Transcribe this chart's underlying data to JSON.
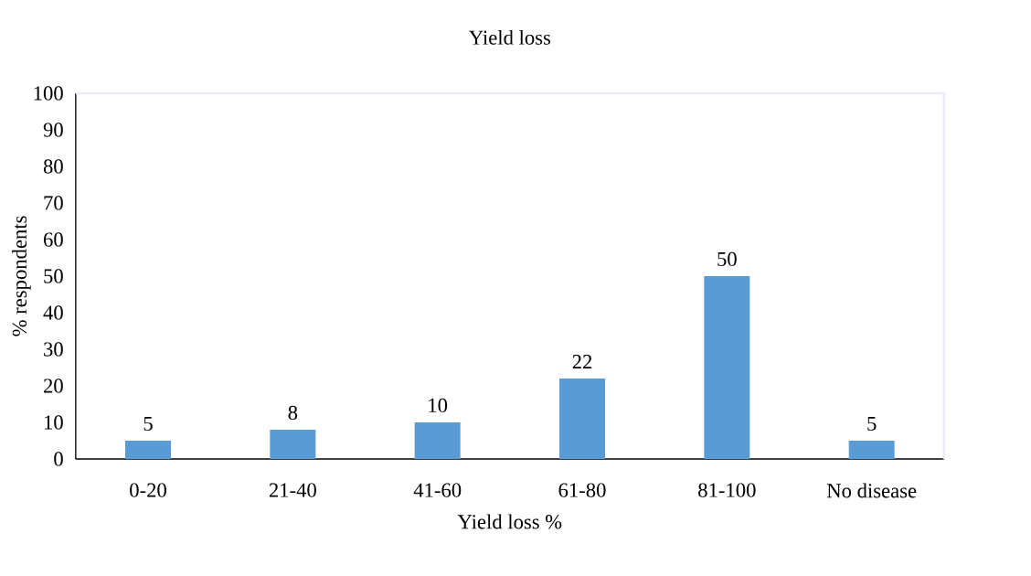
{
  "chart_data": {
    "type": "bar",
    "title": "Yield loss",
    "xlabel": "Yield loss %",
    "ylabel": "% respondents",
    "categories": [
      "0-20",
      "21-40",
      "41-60",
      "61-80",
      "81-100",
      "No disease"
    ],
    "values": [
      5,
      8,
      10,
      22,
      50,
      5
    ],
    "color": "#5b9bd5",
    "ylim": [
      0,
      100
    ],
    "yticks": [
      0,
      10,
      20,
      30,
      40,
      50,
      60,
      70,
      80,
      90,
      100
    ],
    "data_labels": true
  }
}
